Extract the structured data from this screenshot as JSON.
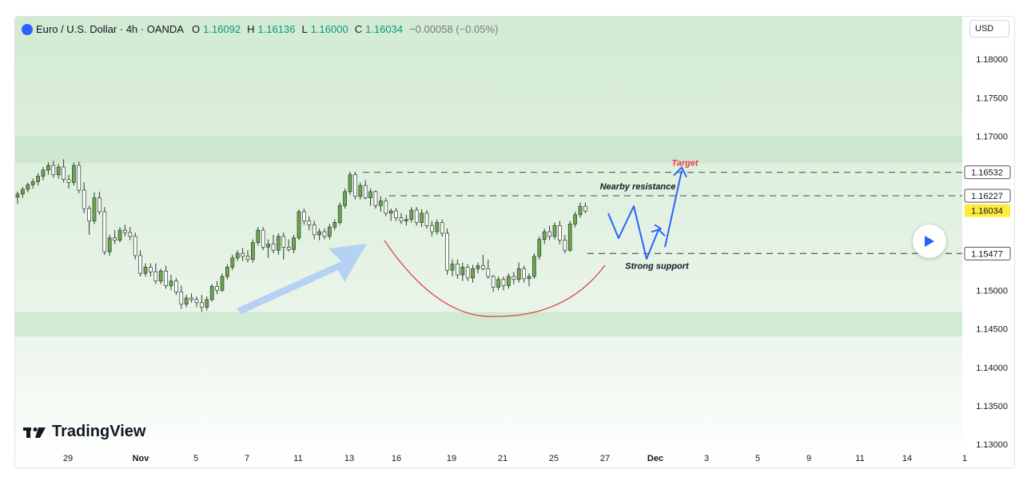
{
  "header": {
    "title": "Euro / U.S. Dollar · 4h · OANDA",
    "open_label": "O",
    "open": "1.16092",
    "high_label": "H",
    "high": "1.16136",
    "low_label": "L",
    "low": "1.16000",
    "close_label": "C",
    "close": "1.16034",
    "change": "−0.00058 (−0.05%)"
  },
  "currency_button": "USD",
  "logo_text": "TradingView",
  "colors": {
    "up": "#089981",
    "candle_body": "#6aa84f",
    "zone": "#c8e6c9",
    "arrow_blue": "#2962ff",
    "curve_red": "#e53935",
    "target_red": "#f23645",
    "current_price_bg": "#ffeb3b"
  },
  "annotations": {
    "target": "Target",
    "resistance": "Nearby resistance",
    "support": "Strong support"
  },
  "chart_data": {
    "type": "candlestick",
    "symbol": "EURUSD",
    "timeframe": "4h",
    "ylim": [
      1.1295,
      1.1855
    ],
    "y_ticks": [
      1.13,
      1.135,
      1.14,
      1.145,
      1.15,
      1.155,
      1.16,
      1.165,
      1.17,
      1.175,
      1.18
    ],
    "y_tick_labels": [
      "1.13000",
      "1.13500",
      "1.14000",
      "1.14500",
      "1.15000",
      "1.15500",
      "1.16000",
      "1.16500",
      "1.17000",
      "1.17500",
      "1.18000"
    ],
    "x_tick_labels": [
      "29",
      "Nov",
      "5",
      "7",
      "11",
      "13",
      "16",
      "19",
      "21",
      "25",
      "27",
      "Dec",
      "3",
      "5",
      "9",
      "11",
      "14",
      "1"
    ],
    "price_levels": [
      {
        "label": "1.16532",
        "value": 1.16532,
        "style": "dashed"
      },
      {
        "label": "1.16227",
        "value": 1.16227,
        "style": "dashed"
      },
      {
        "label": "1.16034",
        "value": 1.16034,
        "style": "current"
      },
      {
        "label": "1.15477",
        "value": 1.15477,
        "style": "dashed"
      }
    ],
    "zones": [
      {
        "from": 1.1665,
        "to": 1.17
      },
      {
        "from": 1.144,
        "to": 1.1472
      }
    ],
    "candles": [
      [
        1.1621,
        1.1628,
        1.1612,
        1.1625
      ],
      [
        1.1625,
        1.1634,
        1.162,
        1.1631
      ],
      [
        1.1631,
        1.164,
        1.1627,
        1.1637
      ],
      [
        1.1637,
        1.1645,
        1.1632,
        1.1641
      ],
      [
        1.1641,
        1.1652,
        1.1636,
        1.1648
      ],
      [
        1.1648,
        1.166,
        1.1643,
        1.1656
      ],
      [
        1.1656,
        1.1666,
        1.165,
        1.1662
      ],
      [
        1.1662,
        1.1668,
        1.1646,
        1.165
      ],
      [
        1.165,
        1.1664,
        1.1645,
        1.166
      ],
      [
        1.166,
        1.167,
        1.164,
        1.1644
      ],
      [
        1.1644,
        1.165,
        1.1632,
        1.164
      ],
      [
        1.164,
        1.1666,
        1.1636,
        1.1662
      ],
      [
        1.1662,
        1.1667,
        1.1626,
        1.163
      ],
      [
        1.163,
        1.164,
        1.16,
        1.1606
      ],
      [
        1.1606,
        1.161,
        1.1572,
        1.159
      ],
      [
        1.159,
        1.1627,
        1.1586,
        1.162
      ],
      [
        1.162,
        1.1628,
        1.1598,
        1.1602
      ],
      [
        1.1602,
        1.1608,
        1.1546,
        1.155
      ],
      [
        1.155,
        1.1572,
        1.1545,
        1.1568
      ],
      [
        1.1568,
        1.1578,
        1.156,
        1.1565
      ],
      [
        1.1565,
        1.1582,
        1.1562,
        1.1578
      ],
      [
        1.1578,
        1.1585,
        1.157,
        1.1575
      ],
      [
        1.1575,
        1.1582,
        1.1565,
        1.157
      ],
      [
        1.157,
        1.1575,
        1.154,
        1.1545
      ],
      [
        1.1545,
        1.1552,
        1.1518,
        1.1522
      ],
      [
        1.1522,
        1.1535,
        1.1518,
        1.153
      ],
      [
        1.153,
        1.1535,
        1.1518,
        1.1524
      ],
      [
        1.1524,
        1.1535,
        1.1508,
        1.1512
      ],
      [
        1.1512,
        1.1528,
        1.1508,
        1.1525
      ],
      [
        1.1525,
        1.1532,
        1.1502,
        1.1506
      ],
      [
        1.1506,
        1.152,
        1.15,
        1.1512
      ],
      [
        1.1512,
        1.1516,
        1.1494,
        1.1498
      ],
      [
        1.1498,
        1.1506,
        1.1476,
        1.1482
      ],
      [
        1.1482,
        1.1494,
        1.1478,
        1.149
      ],
      [
        1.149,
        1.1496,
        1.1484,
        1.1488
      ],
      [
        1.1488,
        1.1492,
        1.1478,
        1.1484
      ],
      [
        1.1484,
        1.1494,
        1.1472,
        1.1478
      ],
      [
        1.1478,
        1.1492,
        1.1474,
        1.1488
      ],
      [
        1.1488,
        1.1508,
        1.1485,
        1.1505
      ],
      [
        1.1505,
        1.1512,
        1.1495,
        1.15
      ],
      [
        1.15,
        1.1522,
        1.1498,
        1.1518
      ],
      [
        1.1518,
        1.1534,
        1.1514,
        1.153
      ],
      [
        1.153,
        1.1546,
        1.1526,
        1.1542
      ],
      [
        1.1542,
        1.1552,
        1.1538,
        1.1548
      ],
      [
        1.1548,
        1.1555,
        1.1538,
        1.1544
      ],
      [
        1.1544,
        1.1552,
        1.1536,
        1.154
      ],
      [
        1.154,
        1.1566,
        1.1536,
        1.1562
      ],
      [
        1.1562,
        1.1582,
        1.1558,
        1.1578
      ],
      [
        1.1578,
        1.1582,
        1.1552,
        1.1556
      ],
      [
        1.1556,
        1.1566,
        1.1542,
        1.156
      ],
      [
        1.156,
        1.1572,
        1.1548,
        1.1552
      ],
      [
        1.1552,
        1.1574,
        1.1546,
        1.157
      ],
      [
        1.157,
        1.1575,
        1.154,
        1.1556
      ],
      [
        1.1556,
        1.1566,
        1.155,
        1.1553
      ],
      [
        1.1553,
        1.1572,
        1.1548,
        1.1568
      ],
      [
        1.1568,
        1.1605,
        1.1565,
        1.1602
      ],
      [
        1.1602,
        1.1606,
        1.1585,
        1.159
      ],
      [
        1.159,
        1.1596,
        1.1578,
        1.1585
      ],
      [
        1.1585,
        1.159,
        1.1566,
        1.1572
      ],
      [
        1.1572,
        1.158,
        1.1565,
        1.1576
      ],
      [
        1.1576,
        1.158,
        1.1566,
        1.157
      ],
      [
        1.157,
        1.1586,
        1.1566,
        1.1582
      ],
      [
        1.1582,
        1.1592,
        1.1578,
        1.1588
      ],
      [
        1.1588,
        1.1614,
        1.1585,
        1.161
      ],
      [
        1.161,
        1.1632,
        1.1606,
        1.1628
      ],
      [
        1.1628,
        1.1654,
        1.1624,
        1.165
      ],
      [
        1.165,
        1.1654,
        1.1618,
        1.1622
      ],
      [
        1.1622,
        1.164,
        1.1618,
        1.1636
      ],
      [
        1.1636,
        1.1643,
        1.1618,
        1.162
      ],
      [
        1.162,
        1.1632,
        1.161,
        1.1628
      ],
      [
        1.1628,
        1.163,
        1.1606,
        1.161
      ],
      [
        1.161,
        1.1622,
        1.1602,
        1.1616
      ],
      [
        1.1616,
        1.162,
        1.1596,
        1.16
      ],
      [
        1.16,
        1.1606,
        1.159,
        1.1603
      ],
      [
        1.1603,
        1.1607,
        1.159,
        1.1594
      ],
      [
        1.1594,
        1.16,
        1.1586,
        1.159
      ],
      [
        1.159,
        1.1598,
        1.1584,
        1.1592
      ],
      [
        1.1592,
        1.1608,
        1.1588,
        1.1604
      ],
      [
        1.1604,
        1.1608,
        1.1584,
        1.1588
      ],
      [
        1.1588,
        1.1605,
        1.1582,
        1.16
      ],
      [
        1.16,
        1.1604,
        1.158,
        1.1584
      ],
      [
        1.1584,
        1.159,
        1.157,
        1.1576
      ],
      [
        1.1576,
        1.1592,
        1.1572,
        1.1588
      ],
      [
        1.1588,
        1.1592,
        1.157,
        1.1574
      ],
      [
        1.1574,
        1.158,
        1.152,
        1.1526
      ],
      [
        1.1526,
        1.154,
        1.1518,
        1.1534
      ],
      [
        1.1534,
        1.154,
        1.1515,
        1.152
      ],
      [
        1.152,
        1.1536,
        1.1512,
        1.153
      ],
      [
        1.153,
        1.1534,
        1.1512,
        1.1516
      ],
      [
        1.1516,
        1.1533,
        1.151,
        1.1528
      ],
      [
        1.1528,
        1.1536,
        1.1522,
        1.1532
      ],
      [
        1.1532,
        1.1546,
        1.1526,
        1.1528
      ],
      [
        1.1528,
        1.154,
        1.1515,
        1.1518
      ],
      [
        1.1518,
        1.152,
        1.1498,
        1.1504
      ],
      [
        1.1504,
        1.1518,
        1.15,
        1.1514
      ],
      [
        1.1514,
        1.1518,
        1.15,
        1.1506
      ],
      [
        1.1506,
        1.1522,
        1.1502,
        1.1518
      ],
      [
        1.1518,
        1.1524,
        1.1508,
        1.1514
      ],
      [
        1.1514,
        1.1536,
        1.151,
        1.1528
      ],
      [
        1.1528,
        1.1532,
        1.151,
        1.1515
      ],
      [
        1.1515,
        1.1522,
        1.1505,
        1.1518
      ],
      [
        1.1518,
        1.1548,
        1.1515,
        1.1544
      ],
      [
        1.1544,
        1.157,
        1.154,
        1.1566
      ],
      [
        1.1566,
        1.158,
        1.156,
        1.1576
      ],
      [
        1.1576,
        1.1584,
        1.1565,
        1.157
      ],
      [
        1.157,
        1.1588,
        1.1566,
        1.1584
      ],
      [
        1.1584,
        1.159,
        1.156,
        1.1565
      ],
      [
        1.1565,
        1.1572,
        1.1548,
        1.1552
      ],
      [
        1.1552,
        1.159,
        1.155,
        1.1586
      ],
      [
        1.1586,
        1.1602,
        1.1582,
        1.1598
      ],
      [
        1.1598,
        1.1614,
        1.1594,
        1.1609
      ],
      [
        1.1609,
        1.1614,
        1.16,
        1.1603
      ]
    ]
  }
}
